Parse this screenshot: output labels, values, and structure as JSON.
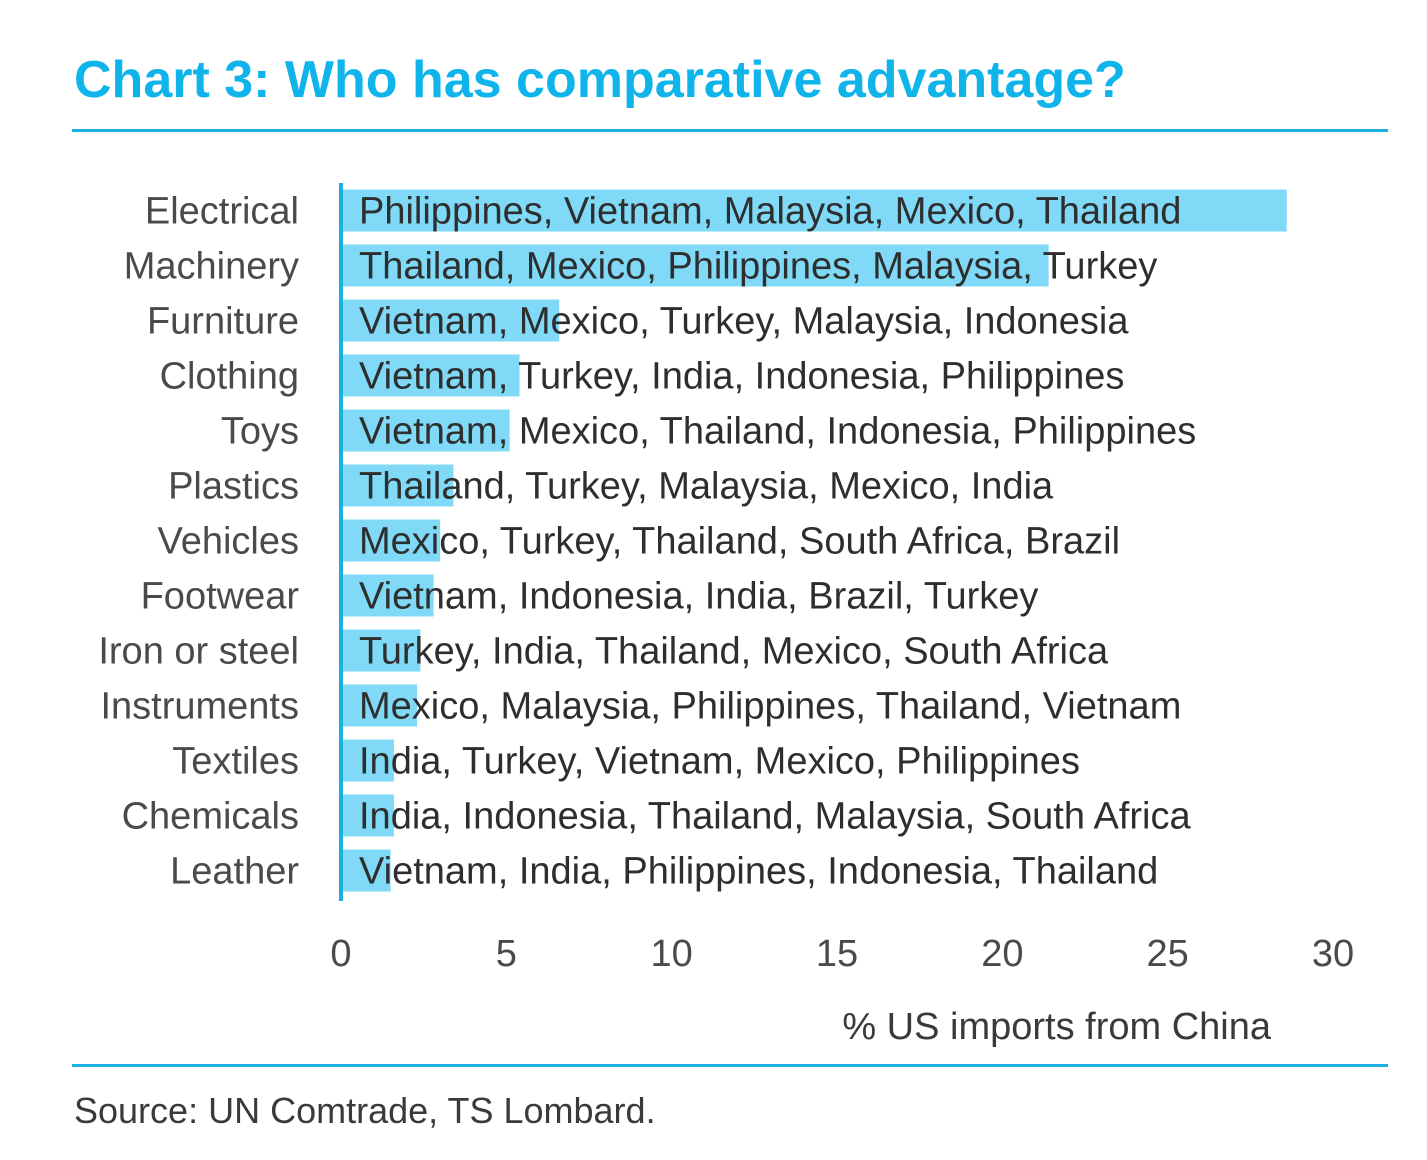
{
  "title": "Chart 3: Who has comparative advantage?",
  "source": "Source: UN Comtrade, TS Lombard.",
  "colors": {
    "accent": "#0fb4ea",
    "bar": "#7fd9f7",
    "axis": "#1ab0e2"
  },
  "chart_data": {
    "type": "bar",
    "orientation": "horizontal",
    "title": "Chart 3: Who has comparative advantage?",
    "xlabel": "% US imports from China",
    "ylabel": "",
    "xlim": [
      0,
      30
    ],
    "xticks": [
      "0",
      "5",
      "10",
      "15",
      "20",
      "25",
      "30"
    ],
    "grid": false,
    "categories": [
      "Electrical",
      "Machinery",
      "Furniture",
      "Clothing",
      "Toys",
      "Plastics",
      "Vehicles",
      "Footwear",
      "Iron or steel",
      "Instruments",
      "Textiles",
      "Chemicals",
      "Leather"
    ],
    "values": [
      28.6,
      21.4,
      6.6,
      5.4,
      5.1,
      3.4,
      3.0,
      2.8,
      2.4,
      2.3,
      1.6,
      1.6,
      1.5
    ],
    "annotations": [
      "Philippines, Vietnam, Malaysia, Mexico, Thailand",
      "Thailand, Mexico, Philippines, Malaysia, Turkey",
      "Vietnam, Mexico, Turkey, Malaysia, Indonesia",
      "Vietnam, Turkey, India, Indonesia, Philippines",
      "Vietnam, Mexico, Thailand, Indonesia, Philippines",
      "Thailand, Turkey, Malaysia, Mexico, India",
      "Mexico, Turkey, Thailand, South Africa, Brazil",
      "Vietnam, Indonesia, India, Brazil, Turkey",
      "Turkey, India, Thailand, Mexico, South Africa",
      "Mexico, Malaysia, Philippines, Thailand, Vietnam",
      "India, Turkey, Vietnam, Mexico, Philippines",
      "India, Indonesia, Thailand, Malaysia, South Africa",
      "Vietnam, India, Philippines, Indonesia, Thailand"
    ]
  }
}
